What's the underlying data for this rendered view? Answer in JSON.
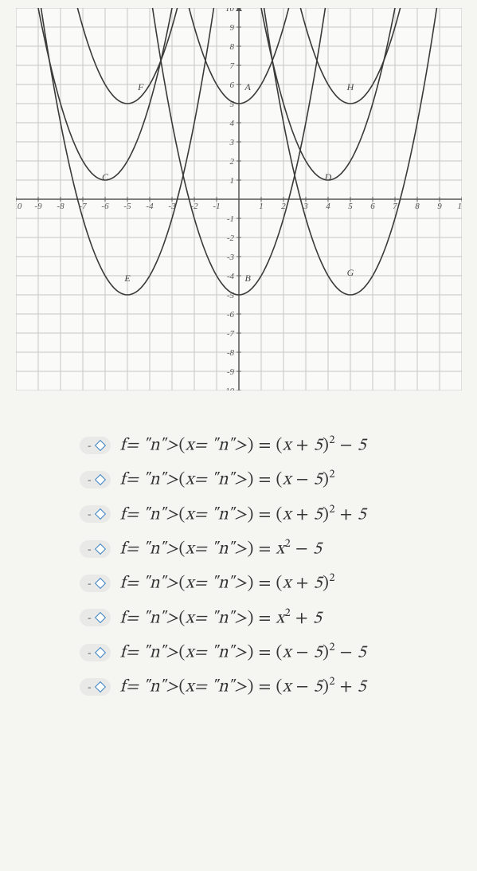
{
  "chart": {
    "type": "line",
    "xlim": [
      -10,
      10
    ],
    "ylim": [
      -10,
      10
    ],
    "xtick_step": 1,
    "ytick_step": 1,
    "background_color": "#fafaf8",
    "grid_color": "#c7c7c3",
    "axis_color": "#555555",
    "curve_color": "#3a3a38",
    "curves": [
      {
        "h": -5,
        "k": -5,
        "label": "E",
        "lx": -5,
        "ly": -4.3
      },
      {
        "h": -5,
        "k": 5,
        "label": "F",
        "lx": -4.4,
        "ly": 5.7
      },
      {
        "h": -6,
        "k": 1,
        "label": "C",
        "lx": -6,
        "ly": 1.0
      },
      {
        "h": 0,
        "k": -5,
        "label": "B",
        "lx": 0.4,
        "ly": -4.3
      },
      {
        "h": 0,
        "k": 5,
        "label": "A",
        "lx": 0.4,
        "ly": 5.7
      },
      {
        "h": 5,
        "k": -5,
        "label": "G",
        "lx": 5,
        "ly": -4
      },
      {
        "h": 5,
        "k": 5,
        "label": "H",
        "lx": 5,
        "ly": 5.7
      },
      {
        "h": 4,
        "k": 1,
        "label": "D",
        "lx": 4,
        "ly": 1.0
      }
    ]
  },
  "options": [
    {
      "latex": "f(x) = (x + 5)^2 - 5"
    },
    {
      "latex": "f(x) = (x - 5)^2"
    },
    {
      "latex": "f(x) = (x + 5)^2 + 5"
    },
    {
      "latex": "f(x) = x^2 - 5"
    },
    {
      "latex": "f(x) = (x + 5)^2"
    },
    {
      "latex": "f(x) = x^2 + 5"
    },
    {
      "latex": "f(x) = (x - 5)^2 - 5"
    },
    {
      "latex": "f(x) = (x - 5)^2 + 5"
    }
  ],
  "pill": {
    "dash": "-"
  }
}
